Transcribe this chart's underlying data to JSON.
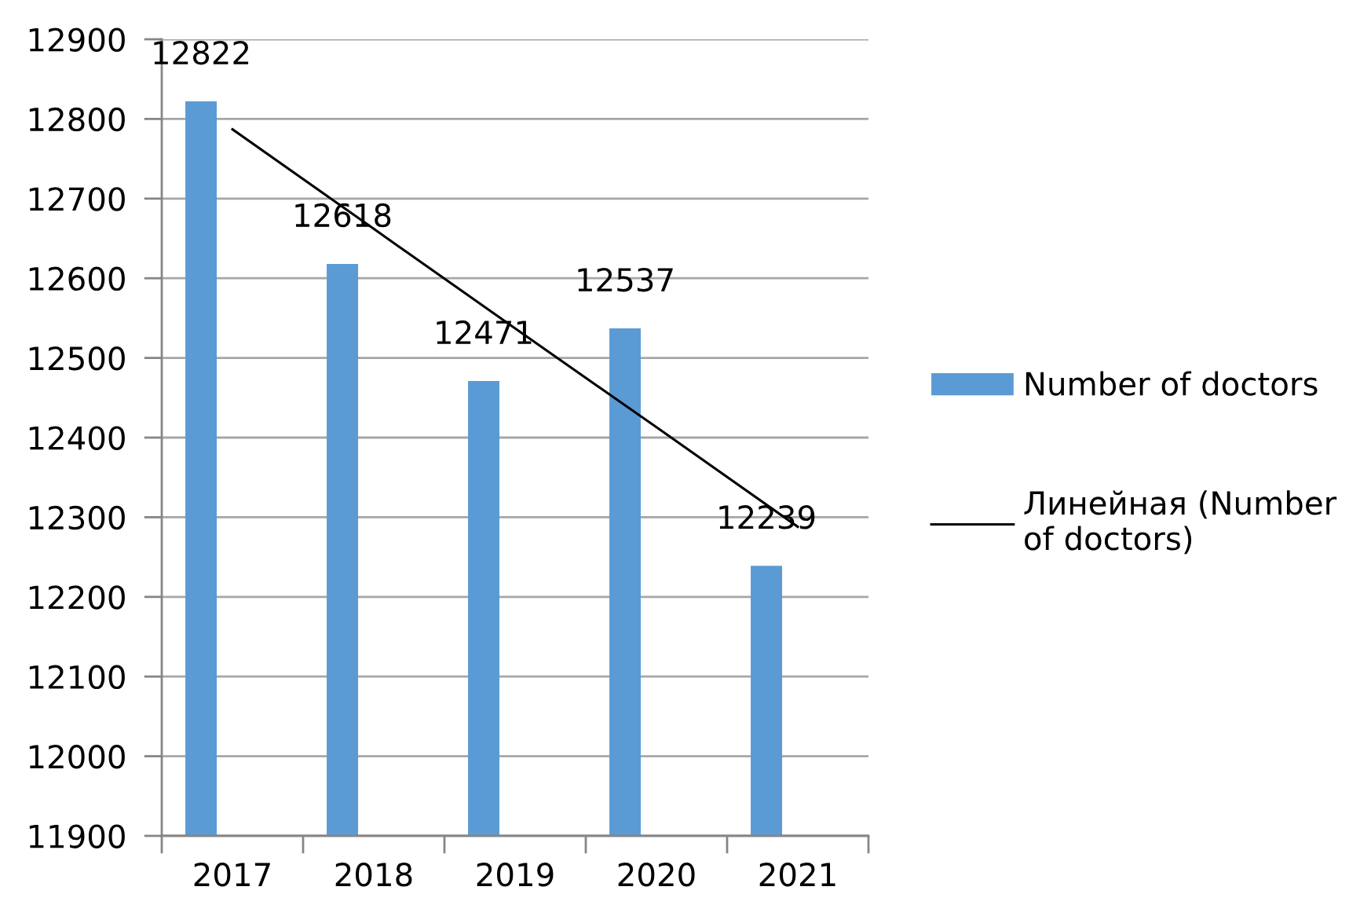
{
  "chart_data": {
    "type": "bar",
    "categories": [
      "2017",
      "2018",
      "2019",
      "2020",
      "2021"
    ],
    "series": [
      {
        "name": "Number of doctors",
        "color": "#5b9bd5",
        "values": [
          12822,
          12618,
          12471,
          12537,
          12239
        ],
        "value_labels": [
          "12822",
          "12618",
          "12471",
          "12537",
          "12239"
        ]
      },
      {
        "name": "Линейная (Number of doctors)",
        "type": "line",
        "color": "#000000",
        "values": [
          12787,
          12662,
          12537,
          12413,
          12288
        ]
      }
    ],
    "ylim": [
      11900,
      12900
    ],
    "yticks": [
      11900,
      12000,
      12100,
      12200,
      12300,
      12400,
      12500,
      12600,
      12700,
      12800,
      12900
    ],
    "grid": "y",
    "legend": "right"
  }
}
